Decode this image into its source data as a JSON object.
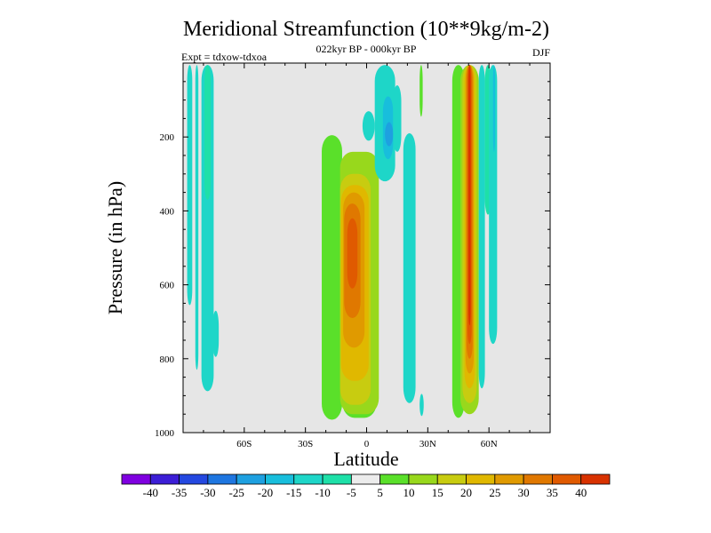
{
  "chart_data": {
    "type": "heatmap",
    "title": "Meridional Streamfunction (10**9kg/m-2)",
    "subtitle": "022kyr BP - 000kyr BP",
    "left_label": "Expt = tdxow-tdxoa",
    "right_label": "DJF",
    "xlabel": "Latitude",
    "ylabel": "Pressure (in hPa)",
    "x_range": [
      -90,
      90
    ],
    "y_range": [
      0,
      1000
    ],
    "y_reversed": true,
    "x_ticks": [
      {
        "value": -60,
        "label": "60S"
      },
      {
        "value": -30,
        "label": "30S"
      },
      {
        "value": 0,
        "label": "0"
      },
      {
        "value": 30,
        "label": "30N"
      },
      {
        "value": 60,
        "label": "60N"
      }
    ],
    "y_ticks": [
      {
        "value": 200,
        "label": "200"
      },
      {
        "value": 400,
        "label": "400"
      },
      {
        "value": 600,
        "label": "600"
      },
      {
        "value": 800,
        "label": "800"
      },
      {
        "value": 1000,
        "label": "1000"
      }
    ],
    "background_color": "#e6e6e6",
    "colorbar": {
      "labels": [
        "-40",
        "-35",
        "-30",
        "-25",
        "-20",
        "-15",
        "-10",
        "-5",
        "5",
        "10",
        "15",
        "20",
        "25",
        "30",
        "35",
        "40"
      ],
      "colors": [
        "#7f00e0",
        "#3c1ed6",
        "#2448e0",
        "#1e76e0",
        "#1ea0e0",
        "#18bedc",
        "#1ed6c8",
        "#1ee0a8",
        "#ececec",
        "#5ae02a",
        "#98d81c",
        "#c8cc10",
        "#e0b800",
        "#e09a00",
        "#e07800",
        "#e05a00",
        "#d83200"
      ]
    },
    "regions": [
      {
        "name": "sh-polar-band",
        "cells": [
          {
            "x0": -88,
            "x1": -85.5,
            "p0": 5,
            "p1": 655,
            "level": "-10"
          },
          {
            "x0": -84,
            "x1": -82.5,
            "p0": 5,
            "p1": 830,
            "level": "-10"
          },
          {
            "x0": -81,
            "x1": -75,
            "p0": 5,
            "p1": 888,
            "level": "-10"
          },
          {
            "x0": -79.5,
            "x1": -76.5,
            "p0": 5,
            "p1": 370,
            "level": "-5"
          },
          {
            "x0": -75.5,
            "x1": -72.5,
            "p0": 670,
            "p1": 795,
            "level": "-10"
          }
        ]
      },
      {
        "name": "tropical-positive-cell",
        "cells": [
          {
            "x0": -22,
            "x1": -12,
            "p0": 195,
            "p1": 965,
            "level": "5"
          },
          {
            "x0": -12,
            "x1": 5,
            "p0": 325,
            "p1": 960,
            "level": "5"
          },
          {
            "x0": -13,
            "x1": 6,
            "p0": 240,
            "p1": 950,
            "level": "10"
          },
          {
            "x0": -13,
            "x1": 2,
            "p0": 300,
            "p1": 925,
            "level": "15"
          },
          {
            "x0": -12.5,
            "x1": 1,
            "p0": 330,
            "p1": 860,
            "level": "20"
          },
          {
            "x0": -11.5,
            "x1": -1,
            "p0": 350,
            "p1": 770,
            "level": "25"
          },
          {
            "x0": -11,
            "x1": -3,
            "p0": 380,
            "p1": 690,
            "level": "30"
          },
          {
            "x0": -9.5,
            "x1": -4.5,
            "p0": 420,
            "p1": 610,
            "level": "35"
          }
        ]
      },
      {
        "name": "tropical-negative-cell",
        "cells": [
          {
            "x0": -2,
            "x1": 4,
            "p0": 130,
            "p1": 210,
            "level": "-10"
          },
          {
            "x0": 4,
            "x1": 14,
            "p0": 5,
            "p1": 320,
            "level": "-10"
          },
          {
            "x0": 8,
            "x1": 13,
            "p0": 90,
            "p1": 260,
            "level": "-15"
          },
          {
            "x0": 9,
            "x1": 13,
            "p0": 160,
            "p1": 225,
            "level": "-20"
          },
          {
            "x0": 13,
            "x1": 17,
            "p0": 60,
            "p1": 240,
            "level": "-10"
          },
          {
            "x0": 18,
            "x1": 24,
            "p0": 190,
            "p1": 920,
            "level": "-10"
          },
          {
            "x0": 26,
            "x1": 27.5,
            "p0": 5,
            "p1": 145,
            "level": "5"
          },
          {
            "x0": 26,
            "x1": 28,
            "p0": 895,
            "p1": 955,
            "level": "-10"
          }
        ]
      },
      {
        "name": "nh-midlat-cell",
        "cells": [
          {
            "x0": 42,
            "x1": 48,
            "p0": 5,
            "p1": 960,
            "level": "5"
          },
          {
            "x0": 46,
            "x1": 55,
            "p0": 5,
            "p1": 950,
            "level": "10"
          },
          {
            "x0": 47,
            "x1": 54,
            "p0": 5,
            "p1": 920,
            "level": "15"
          },
          {
            "x0": 48,
            "x1": 53,
            "p0": 5,
            "p1": 880,
            "level": "20"
          },
          {
            "x0": 48.5,
            "x1": 52.5,
            "p0": 5,
            "p1": 840,
            "level": "25"
          },
          {
            "x0": 49,
            "x1": 52,
            "p0": 5,
            "p1": 800,
            "level": "30"
          },
          {
            "x0": 49.5,
            "x1": 51.5,
            "p0": 5,
            "p1": 760,
            "level": "35"
          },
          {
            "x0": 50,
            "x1": 51,
            "p0": 5,
            "p1": 710,
            "level": "40"
          },
          {
            "x0": 55,
            "x1": 58,
            "p0": 5,
            "p1": 880,
            "level": "-10"
          },
          {
            "x0": 58,
            "x1": 61,
            "p0": 5,
            "p1": 410,
            "level": "-5"
          },
          {
            "x0": 60,
            "x1": 64,
            "p0": 5,
            "p1": 760,
            "level": "-10"
          },
          {
            "x0": 62,
            "x1": 63,
            "p0": 5,
            "p1": 240,
            "level": "-15"
          }
        ]
      }
    ]
  }
}
